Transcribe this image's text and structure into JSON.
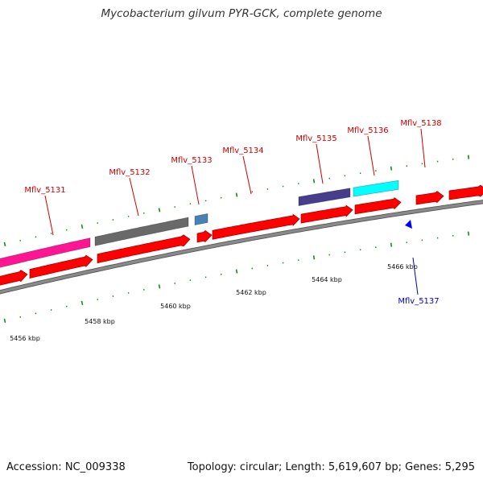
{
  "title": "Mycobacterium gilvum PYR-GCK, complete genome",
  "footer": {
    "accession": "Accession: NC_009338",
    "summary": "Topology: circular; Length: 5,619,607 bp; Genes: 5,295"
  },
  "colors": {
    "backbone": "#8a8a8a",
    "cds": "#ff0000",
    "label_forward": "#cc0000",
    "label_reverse": "#0000cc",
    "tick": "#1a8a1a"
  },
  "scale": {
    "labels": [
      "5456 kbp",
      "5458 kbp",
      "5460 kbp",
      "5462 kbp",
      "5464 kbp",
      "5466 kbp"
    ]
  },
  "genes": [
    {
      "label": "Mflv_5131",
      "color": "#ff1493"
    },
    {
      "label": "Mflv_5132",
      "color": "#696969"
    },
    {
      "label": "Mflv_5133",
      "color": "#4682b4"
    },
    {
      "label": "Mflv_5134",
      "color": "#ff0000"
    },
    {
      "label": "Mflv_5135",
      "color": "#483d8b"
    },
    {
      "label": "Mflv_5136",
      "color": "#00ffff"
    },
    {
      "label": "Mflv_5138",
      "color": "#ff0000"
    },
    {
      "label": "Mflv_5137",
      "color": "#0000ff"
    }
  ]
}
